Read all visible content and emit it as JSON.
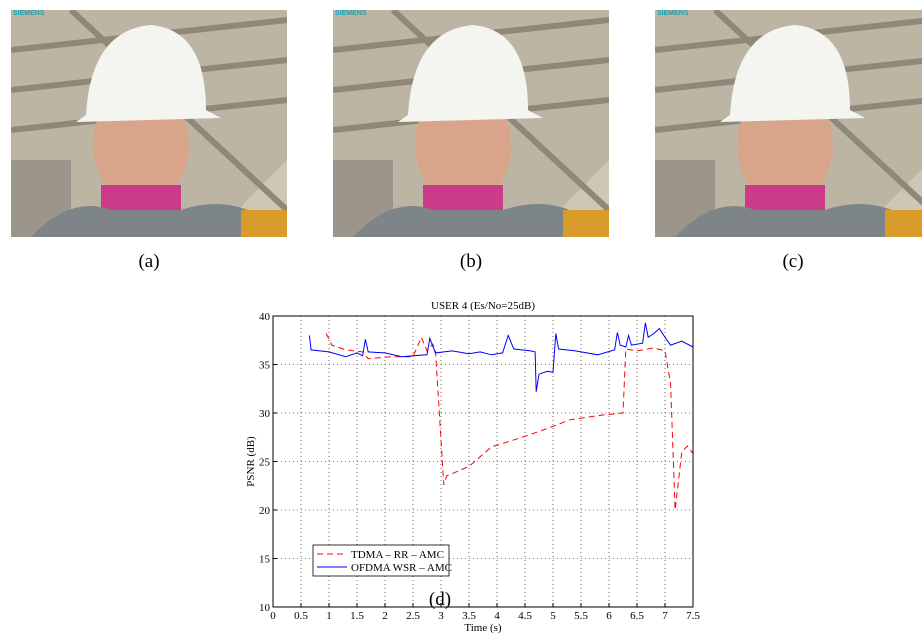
{
  "photos": [
    {
      "logo": "SIEMENS",
      "caption": "(a)"
    },
    {
      "logo": "SIEMENS",
      "caption": "(b)"
    },
    {
      "logo": "SIEMENS",
      "caption": "(c)"
    }
  ],
  "chart_data": {
    "type": "line",
    "title": "USER 4 (Es/No=25dB)",
    "caption": "(d)",
    "xlabel": "Time (s)",
    "ylabel": "PSNR (dB)",
    "xlim": [
      0,
      7.5
    ],
    "ylim": [
      10,
      40
    ],
    "xticks": [
      0,
      0.5,
      1,
      1.5,
      2,
      2.5,
      3,
      3.5,
      4,
      4.5,
      5,
      5.5,
      6,
      6.5,
      7,
      7.5
    ],
    "yticks": [
      10,
      15,
      20,
      25,
      30,
      35,
      40
    ],
    "grid": true,
    "legend": "lower left",
    "series": [
      {
        "name": "TDMA – RR – AMC",
        "color": "#ff0000",
        "dash": true,
        "x": [
          0.95,
          1.05,
          1.3,
          1.6,
          1.7,
          2.1,
          2.5,
          2.65,
          2.75,
          2.85,
          2.9,
          3.05,
          3.1,
          3.5,
          3.9,
          4.4,
          4.9,
          5.3,
          5.9,
          6.25,
          6.3,
          6.5,
          6.8,
          7.0,
          7.1,
          7.18,
          7.3,
          7.4,
          7.5
        ],
        "values": [
          38.2,
          37,
          36.5,
          36.3,
          35.6,
          35.8,
          35.8,
          37.8,
          36.4,
          37.1,
          36.5,
          22.6,
          23.5,
          24.5,
          26.5,
          27.4,
          28.4,
          29.3,
          29.8,
          30,
          36.6,
          36.4,
          36.7,
          36.4,
          33,
          20,
          26,
          26.6,
          25.8
        ]
      },
      {
        "name": "OFDMA WSR – AMC",
        "color": "#0000ff",
        "dash": false,
        "x": [
          0.65,
          0.68,
          1.0,
          1.3,
          1.5,
          1.6,
          1.65,
          1.7,
          2.0,
          2.3,
          2.5,
          2.75,
          2.8,
          2.9,
          3.2,
          3.5,
          3.7,
          3.9,
          4.1,
          4.2,
          4.3,
          4.6,
          4.68,
          4.7,
          4.75,
          4.9,
          5.0,
          5.05,
          5.1,
          5.4,
          5.8,
          6.1,
          6.15,
          6.2,
          6.3,
          6.35,
          6.4,
          6.6,
          6.65,
          6.7,
          6.8,
          6.9,
          7.0,
          7.1,
          7.3,
          7.5
        ],
        "values": [
          38,
          36.5,
          36.3,
          35.8,
          36.2,
          35.9,
          37.6,
          36.3,
          36.2,
          35.8,
          35.9,
          36,
          37.7,
          36.2,
          36.4,
          36.1,
          36.3,
          36,
          36.2,
          38,
          36.6,
          36.4,
          36.3,
          32.2,
          34,
          34.3,
          34.2,
          38.2,
          36.6,
          36.4,
          36,
          36.5,
          38.3,
          37,
          36.8,
          38,
          37,
          37.2,
          39.3,
          37.8,
          38.2,
          38.7,
          37.8,
          37,
          37.4,
          36.8
        ]
      }
    ]
  }
}
